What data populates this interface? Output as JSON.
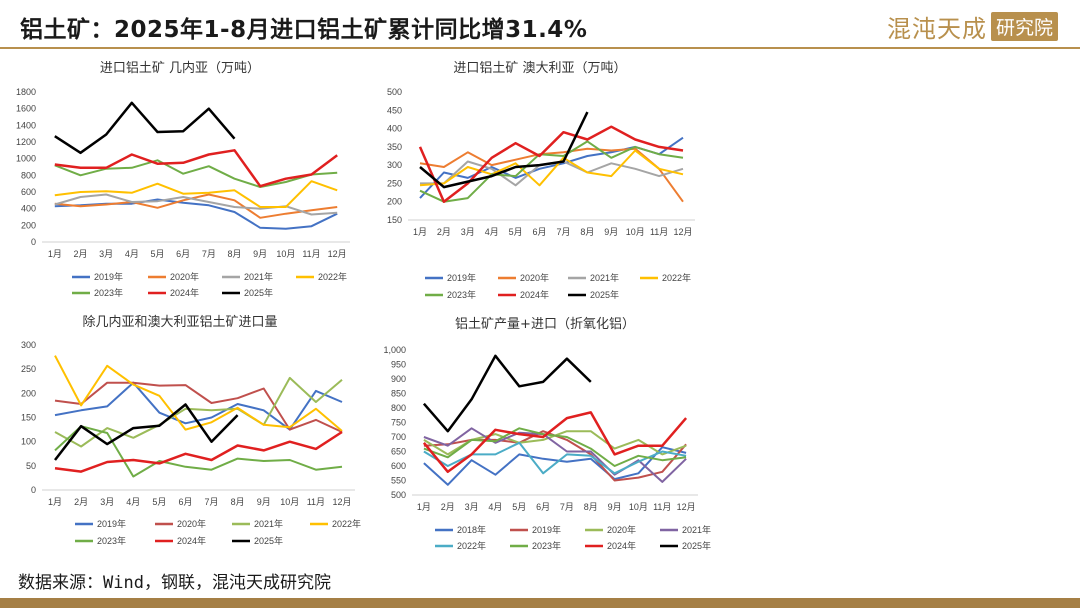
{
  "header": {
    "title": "铝土矿：2025年1-8月进口铝土矿累计同比增31.4%",
    "logo_text": "混沌天成",
    "logo_box_text": "研究院"
  },
  "footer": {
    "source": "数据来源：Wind，钢联，混沌天成研究院"
  },
  "colors": {
    "brand": "#b8904d",
    "series": {
      "2018年": "#4472c4",
      "2019年": "#4472c4",
      "2020年": "#ed7d31",
      "2021年": "#a5a5a5",
      "2022年": "#ffc000",
      "2023年": "#70ad47",
      "2024年": "#e02020",
      "2025年": "#000000"
    }
  },
  "chart_data": [
    {
      "type": "line",
      "title": "进口铝土矿 几内亚（万吨）",
      "categories": [
        "1月",
        "2月",
        "3月",
        "4月",
        "5月",
        "6月",
        "7月",
        "8月",
        "9月",
        "10月",
        "11月",
        "12月"
      ],
      "ylim": [
        0,
        1800
      ],
      "yticks": [
        0,
        200,
        400,
        600,
        800,
        1000,
        1200,
        1400,
        1600,
        1800
      ],
      "ytick_labels": [
        "0",
        "200",
        "400",
        "600",
        "800",
        "1000",
        "1200",
        "1400",
        "1600",
        "1800"
      ],
      "legend_rows": [
        [
          "2019年",
          "2020年",
          "2021年",
          "2022年"
        ],
        [
          "2023年",
          "2024年",
          "2025年"
        ]
      ],
      "series": [
        {
          "name": "2019年",
          "color": "#4472c4",
          "values": [
            430,
            440,
            460,
            460,
            510,
            470,
            440,
            360,
            170,
            160,
            190,
            340
          ]
        },
        {
          "name": "2020年",
          "color": "#ed7d31",
          "values": [
            460,
            430,
            450,
            480,
            410,
            500,
            570,
            500,
            290,
            340,
            380,
            420
          ]
        },
        {
          "name": "2021年",
          "color": "#a5a5a5",
          "values": [
            450,
            540,
            570,
            480,
            490,
            540,
            480,
            420,
            400,
            430,
            330,
            350
          ]
        },
        {
          "name": "2022年",
          "color": "#ffc000",
          "values": [
            560,
            600,
            610,
            590,
            700,
            580,
            590,
            620,
            420,
            420,
            730,
            620
          ]
        },
        {
          "name": "2023年",
          "color": "#70ad47",
          "values": [
            920,
            800,
            880,
            890,
            980,
            820,
            910,
            760,
            660,
            720,
            810,
            830
          ]
        },
        {
          "name": "2024年",
          "color": "#e02020",
          "values": [
            930,
            890,
            890,
            1050,
            940,
            950,
            1050,
            1100,
            670,
            760,
            810,
            1040
          ]
        },
        {
          "name": "2025年",
          "color": "#000000",
          "values": [
            1270,
            1070,
            1290,
            1670,
            1320,
            1330,
            1600,
            1240,
            null,
            null,
            null,
            null
          ]
        }
      ]
    },
    {
      "type": "line",
      "title": "进口铝土矿 澳大利亚（万吨）",
      "categories": [
        "1月",
        "2月",
        "3月",
        "4月",
        "5月",
        "6月",
        "7月",
        "8月",
        "9月",
        "10月",
        "11月",
        "12月"
      ],
      "ylim": [
        150,
        500
      ],
      "yticks": [
        150,
        200,
        250,
        300,
        350,
        400,
        450,
        500
      ],
      "ytick_labels": [
        "150",
        "200",
        "250",
        "300",
        "350",
        "400",
        "450",
        "500"
      ],
      "legend_rows": [
        [
          "2019年",
          "2020年",
          "2021年",
          "2022年"
        ],
        [
          "2023年",
          "2024年",
          "2025年"
        ]
      ],
      "series": [
        {
          "name": "2019年",
          "color": "#4472c4",
          "values": [
            210,
            280,
            265,
            295,
            265,
            290,
            305,
            325,
            335,
            350,
            330,
            375
          ]
        },
        {
          "name": "2020年",
          "color": "#ed7d31",
          "values": [
            305,
            295,
            335,
            300,
            315,
            330,
            335,
            345,
            340,
            345,
            290,
            200
          ]
        },
        {
          "name": "2021年",
          "color": "#a5a5a5",
          "values": [
            250,
            250,
            310,
            290,
            245,
            300,
            310,
            280,
            305,
            290,
            270,
            290
          ]
        },
        {
          "name": "2022年",
          "color": "#ffc000",
          "values": [
            245,
            250,
            295,
            275,
            305,
            245,
            320,
            280,
            270,
            340,
            290,
            275
          ]
        },
        {
          "name": "2023年",
          "color": "#70ad47",
          "values": [
            230,
            200,
            210,
            275,
            270,
            330,
            325,
            365,
            320,
            350,
            330,
            320
          ]
        },
        {
          "name": "2024年",
          "color": "#e02020",
          "values": [
            350,
            200,
            250,
            320,
            360,
            325,
            390,
            370,
            405,
            370,
            350,
            340
          ]
        },
        {
          "name": "2025年",
          "color": "#000000",
          "values": [
            295,
            240,
            255,
            270,
            295,
            300,
            310,
            445,
            null,
            null,
            null,
            null
          ]
        }
      ]
    },
    {
      "type": "line",
      "title": "除几内亚和澳大利亚铝土矿进口量",
      "categories": [
        "1月",
        "2月",
        "3月",
        "4月",
        "5月",
        "6月",
        "7月",
        "8月",
        "9月",
        "10月",
        "11月",
        "12月"
      ],
      "ylim": [
        0,
        300
      ],
      "yticks": [
        0,
        50,
        100,
        150,
        200,
        250,
        300
      ],
      "ytick_labels": [
        "0",
        "50",
        "100",
        "150",
        "200",
        "250",
        "300"
      ],
      "legend_rows": [
        [
          "2019年",
          "2020年",
          "2021年",
          "2022年"
        ],
        [
          "2023年",
          "2024年",
          "2025年"
        ]
      ],
      "series": [
        {
          "name": "2019年",
          "color": "#4472c4",
          "values": [
            155,
            165,
            173,
            222,
            160,
            138,
            150,
            178,
            165,
            125,
            205,
            182
          ]
        },
        {
          "name": "2020年",
          "color": "#c0504d",
          "values": [
            185,
            178,
            222,
            222,
            216,
            217,
            180,
            190,
            210,
            125,
            145,
            120
          ]
        },
        {
          "name": "2021年",
          "color": "#9bbb59",
          "values": [
            120,
            90,
            128,
            108,
            135,
            168,
            165,
            168,
            135,
            232,
            182,
            228
          ]
        },
        {
          "name": "2022年",
          "color": "#ffc000",
          "values": [
            278,
            175,
            257,
            218,
            195,
            125,
            140,
            170,
            135,
            130,
            168,
            122
          ]
        },
        {
          "name": "2023年",
          "color": "#70ad47",
          "values": [
            82,
            132,
            118,
            28,
            60,
            48,
            42,
            65,
            60,
            62,
            42,
            48
          ]
        },
        {
          "name": "2024年",
          "color": "#e02020",
          "values": [
            45,
            38,
            58,
            62,
            55,
            75,
            62,
            92,
            82,
            100,
            85,
            120
          ]
        },
        {
          "name": "2025年",
          "color": "#000000",
          "values": [
            62,
            132,
            95,
            128,
            133,
            177,
            100,
            155,
            null,
            null,
            null,
            null
          ]
        }
      ]
    },
    {
      "type": "line",
      "title": "铝土矿产量+进口（折氧化铝）",
      "categories": [
        "1月",
        "2月",
        "3月",
        "4月",
        "5月",
        "6月",
        "7月",
        "8月",
        "9月",
        "10月",
        "11月",
        "12月"
      ],
      "ylim": [
        500,
        1000
      ],
      "yticks": [
        500,
        550,
        600,
        650,
        700,
        750,
        800,
        850,
        900,
        950,
        1000
      ],
      "ytick_labels": [
        "500",
        "550",
        "600",
        "650",
        "700",
        "750",
        "800",
        "850",
        "900",
        "950",
        "1,000"
      ],
      "legend_rows": [
        [
          "2018年",
          "2019年",
          "2020年",
          "2021年"
        ],
        [
          "2022年",
          "2023年",
          "2024年",
          "2025年"
        ]
      ],
      "series": [
        {
          "name": "2018年",
          "color": "#4472c4",
          "values": [
            610,
            535,
            620,
            570,
            640,
            625,
            615,
            625,
            555,
            575,
            665,
            645
          ]
        },
        {
          "name": "2019年",
          "color": "#c0504d",
          "values": [
            670,
            675,
            690,
            690,
            680,
            720,
            690,
            640,
            550,
            560,
            580,
            675
          ]
        },
        {
          "name": "2020年",
          "color": "#9bbb59",
          "values": [
            690,
            640,
            690,
            710,
            680,
            690,
            720,
            720,
            660,
            690,
            640,
            670
          ]
        },
        {
          "name": "2021年",
          "color": "#8064a2",
          "values": [
            700,
            670,
            730,
            680,
            715,
            710,
            650,
            650,
            570,
            620,
            545,
            625
          ]
        },
        {
          "name": "2022年",
          "color": "#4bacc6",
          "values": [
            650,
            600,
            640,
            640,
            680,
            575,
            640,
            635,
            575,
            615,
            650,
            635
          ]
        },
        {
          "name": "2023年",
          "color": "#70ad47",
          "values": [
            660,
            630,
            690,
            685,
            730,
            710,
            700,
            660,
            600,
            635,
            620,
            630
          ]
        },
        {
          "name": "2024年",
          "color": "#e02020",
          "values": [
            680,
            580,
            640,
            725,
            710,
            700,
            765,
            785,
            640,
            670,
            670,
            765
          ]
        },
        {
          "name": "2025年",
          "color": "#000000",
          "values": [
            815,
            720,
            830,
            980,
            875,
            890,
            970,
            890,
            null,
            null,
            null,
            null
          ]
        }
      ]
    }
  ]
}
